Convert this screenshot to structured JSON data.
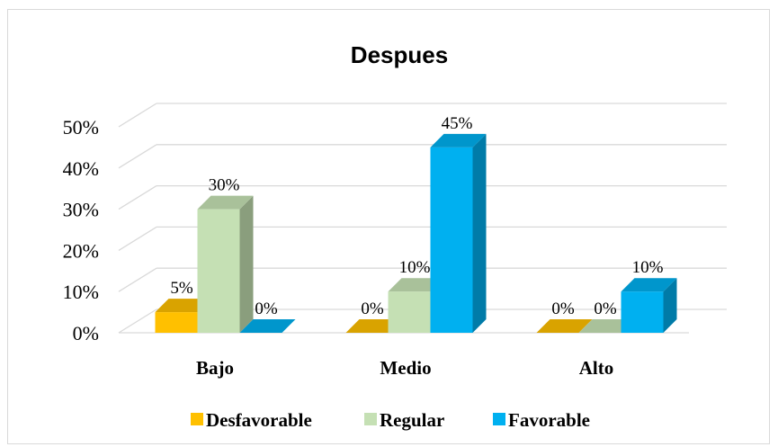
{
  "chart_data": {
    "type": "bar",
    "title": "Despues",
    "categories": [
      "Bajo",
      "Medio",
      "Alto"
    ],
    "series": [
      {
        "name": "Desfavorable",
        "values": [
          5,
          0,
          0
        ],
        "labels": [
          "5%",
          "0%",
          "0%"
        ],
        "color": "#FFC000",
        "side": "#BF9000",
        "top": "#D9A300"
      },
      {
        "name": "Regular",
        "values": [
          30,
          10,
          0
        ],
        "labels": [
          "30%",
          "10%",
          "0%"
        ],
        "color": "#C5E0B4",
        "side": "#8A9E7D",
        "top": "#A9C19A"
      },
      {
        "name": "Favorable",
        "values": [
          0,
          45,
          10
        ],
        "labels": [
          "0%",
          "45%",
          "10%"
        ],
        "color": "#00B0F0",
        "side": "#007BA8",
        "top": "#0096CC"
      }
    ],
    "yticks": [
      "0%",
      "10%",
      "20%",
      "30%",
      "40%",
      "50%"
    ],
    "ylim": [
      0,
      50
    ],
    "grid": true,
    "legend_position": "bottom"
  }
}
